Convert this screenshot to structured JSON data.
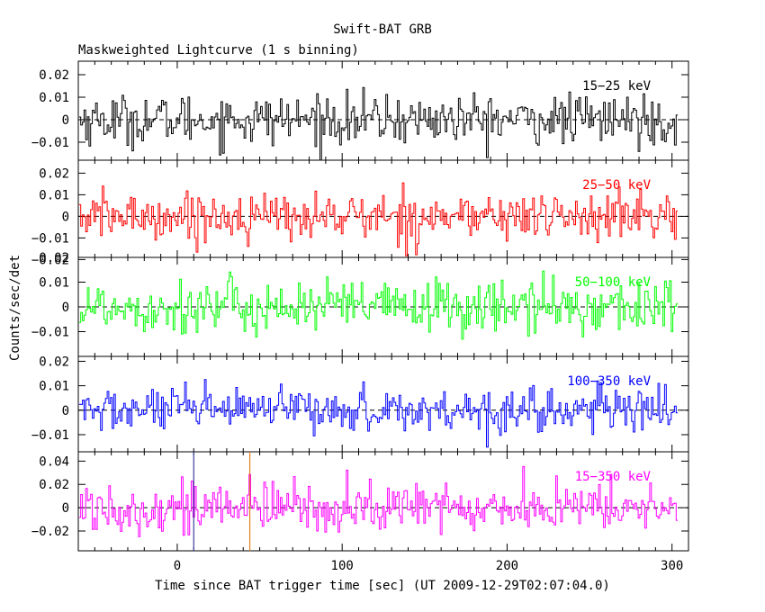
{
  "title": "Swift-BAT GRB",
  "subtitle": "Maskweighted Lightcurve (1 s binning)",
  "xlabel": "Time since BAT trigger time [sec] (UT 2009-12-29T02:07:04.0)",
  "ylabel": "Counts/sec/det",
  "chart_data": {
    "type": "line",
    "title": "Swift-BAT GRB",
    "subtitle": "Maskweighted Lightcurve (1 s binning)",
    "xlabel": "Time since BAT trigger time [sec] (UT 2009-12-29T02:07:04.0)",
    "ylabel": "Counts/sec/det",
    "xlim": [
      -60,
      310
    ],
    "x_ticks": [
      0,
      100,
      200,
      300
    ],
    "x_tick_labels": [
      "0",
      "100",
      "200",
      "300"
    ],
    "binning_sec": 1,
    "data_x_range": [
      -59,
      303
    ],
    "vertical_markers": [
      {
        "x": 10,
        "color": "#4040a0"
      },
      {
        "x": 44,
        "color": "#e08020"
      }
    ],
    "panels": [
      {
        "name": "15-25 keV",
        "label": "15−25 keV",
        "color": "#000000",
        "ylim": [
          -0.018,
          0.026
        ],
        "y_ticks": [
          -0.01,
          0,
          0.01,
          0.02
        ],
        "y_tick_labels": [
          "−0.01",
          "0",
          "0.01",
          "0.02"
        ],
        "noise_sd": 0.0055,
        "features": []
      },
      {
        "name": "25-50 keV",
        "label": "25−50 keV",
        "color": "#ff0000",
        "ylim": [
          -0.019,
          0.026
        ],
        "y_ticks": [
          -0.02,
          -0.01,
          0,
          0.01,
          0.02
        ],
        "y_tick_labels": [
          "−0.02",
          "−0.01",
          "0",
          "0.01",
          "0.02"
        ],
        "noise_sd": 0.0055,
        "features": []
      },
      {
        "name": "50-100 keV",
        "label": "50−100 keV",
        "color": "#00ff00",
        "ylim": [
          -0.02,
          0.02
        ],
        "y_ticks": [
          -0.01,
          0,
          0.01,
          0.02
        ],
        "y_tick_labels": [
          "−0.01",
          "0",
          "0.01",
          "0.02"
        ],
        "noise_sd": 0.0055,
        "features": []
      },
      {
        "name": "100-350 keV",
        "label": "100−350 keV",
        "color": "#0000ff",
        "ylim": [
          -0.017,
          0.022
        ],
        "y_ticks": [
          -0.01,
          0,
          0.01,
          0.02
        ],
        "y_tick_labels": [
          "−0.01",
          "0",
          "0.01",
          "0.02"
        ],
        "noise_sd": 0.0045,
        "features": []
      },
      {
        "name": "15-350 keV",
        "label": "15−350 keV",
        "color": "#ff00ff",
        "ylim": [
          -0.037,
          0.048
        ],
        "y_ticks": [
          -0.02,
          0,
          0.02,
          0.04
        ],
        "y_tick_labels": [
          "−0.02",
          "0",
          "0.02",
          "0.04"
        ],
        "noise_sd": 0.011,
        "features": []
      }
    ]
  }
}
